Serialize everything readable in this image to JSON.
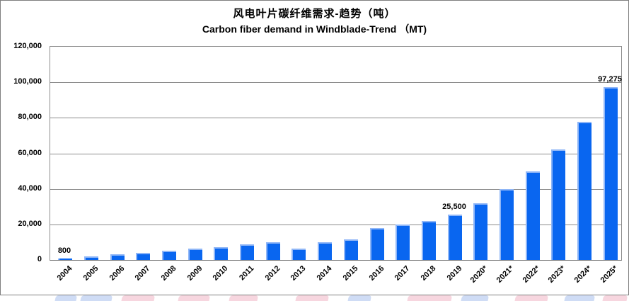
{
  "chart_data": {
    "type": "bar",
    "title": "风电叶片碳纤维需求-趋势（吨）",
    "subtitle": "Carbon fiber demand in Windblade-Trend （MT)",
    "categories": [
      "2004",
      "2005",
      "2006",
      "2007",
      "2008",
      "2009",
      "2010",
      "2011",
      "2012",
      "2013",
      "2014",
      "2015",
      "2016",
      "2017",
      "2018",
      "2019",
      "2020*",
      "2021*",
      "2022*",
      "2023*",
      "2024*",
      "2025*"
    ],
    "values": [
      800,
      2000,
      3000,
      4000,
      5200,
      6400,
      7000,
      8700,
      10000,
      6400,
      10000,
      11500,
      18000,
      20000,
      22000,
      25500,
      31875,
      39844,
      49805,
      62256,
      77820,
      97275
    ],
    "data_labels": [
      {
        "index": 0,
        "label": "800"
      },
      {
        "index": 15,
        "label": "25,500"
      },
      {
        "index": 21,
        "label": "97,275"
      }
    ],
    "xlabel": "",
    "ylabel": "",
    "ylim": [
      0,
      120000
    ],
    "ytick_step": 20000,
    "ytick_labels": [
      "0",
      "20,000",
      "40,000",
      "60,000",
      "80,000",
      "100,000",
      "120,000"
    ],
    "grid": true,
    "legend": "none",
    "bar_color": "#0966F0",
    "bar_highlight_color": "#8FB6F7",
    "gridline_color": "#8C8C8C",
    "axis_color": "#6E6E6E",
    "frame_color": "#7F7F7F",
    "watermark_colors": {
      "blue": "#CFDCF5",
      "pink": "#F7D6DF"
    }
  }
}
